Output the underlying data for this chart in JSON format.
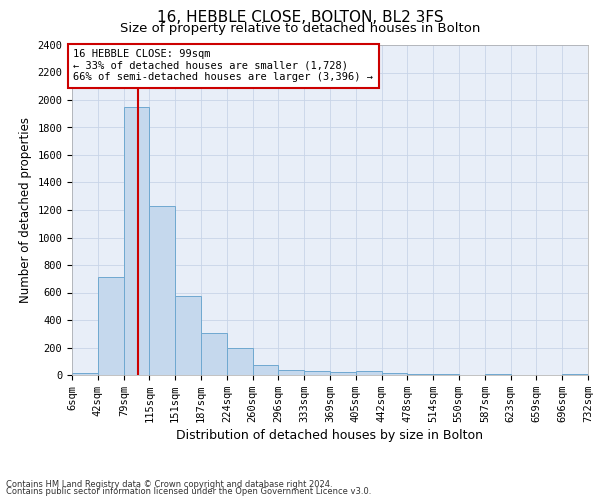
{
  "title": "16, HEBBLE CLOSE, BOLTON, BL2 3FS",
  "subtitle": "Size of property relative to detached houses in Bolton",
  "xlabel": "Distribution of detached houses by size in Bolton",
  "ylabel": "Number of detached properties",
  "property_label": "16 HEBBLE CLOSE: 99sqm",
  "annotation_line1": "← 33% of detached houses are smaller (1,728)",
  "annotation_line2": "66% of semi-detached houses are larger (3,396) →",
  "footer_line1": "Contains HM Land Registry data © Crown copyright and database right 2024.",
  "footer_line2": "Contains public sector information licensed under the Open Government Licence v3.0.",
  "bin_edges": [
    6,
    42,
    79,
    115,
    151,
    187,
    224,
    260,
    296,
    333,
    369,
    405,
    442,
    478,
    514,
    550,
    587,
    623,
    659,
    696,
    732
  ],
  "bar_values": [
    15,
    710,
    1950,
    1230,
    575,
    305,
    200,
    75,
    35,
    30,
    25,
    30,
    15,
    10,
    5,
    0,
    10,
    0,
    0,
    10
  ],
  "bar_color": "#c5d8ed",
  "bar_edge_color": "#6fa8d0",
  "grid_color": "#c8d4e8",
  "bg_color": "#e8eef8",
  "red_line_x": 99,
  "red_line_color": "#cc0000",
  "ylim": [
    0,
    2400
  ],
  "yticks": [
    0,
    200,
    400,
    600,
    800,
    1000,
    1200,
    1400,
    1600,
    1800,
    2000,
    2200,
    2400
  ],
  "title_fontsize": 11,
  "subtitle_fontsize": 9.5,
  "xlabel_fontsize": 9,
  "ylabel_fontsize": 8.5,
  "tick_fontsize": 7.5,
  "annotation_fontsize": 7.5,
  "footer_fontsize": 6
}
